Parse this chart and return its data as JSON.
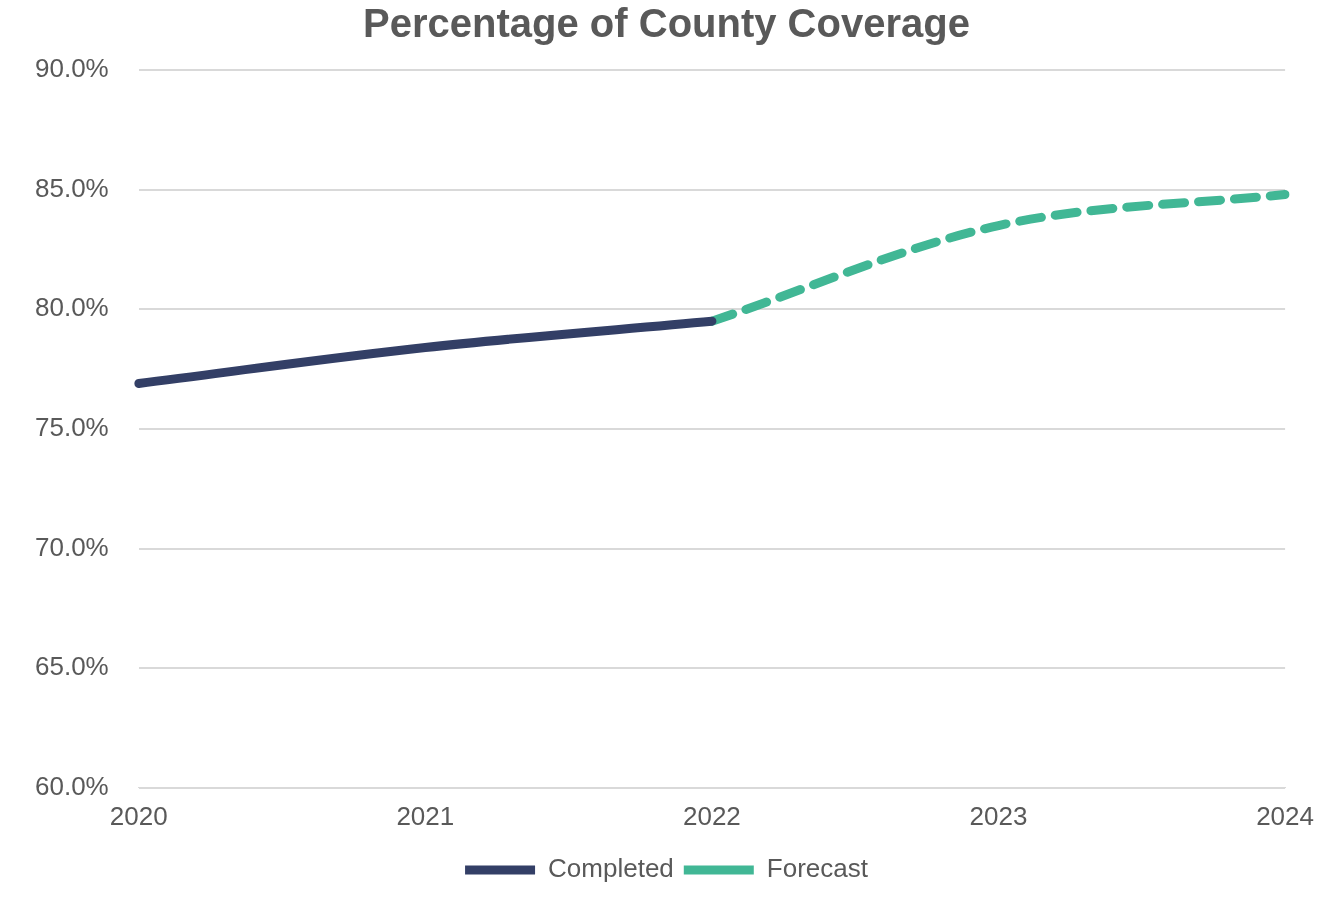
{
  "chart_data": {
    "type": "line",
    "title": "Percentage of County Coverage",
    "categories": [
      "2020",
      "2021",
      "2022",
      "2023",
      "2024"
    ],
    "series": [
      {
        "name": "Completed",
        "color": "#333f66",
        "values": [
          76.9,
          78.4,
          79.5,
          null,
          null
        ],
        "line_style": "solid"
      },
      {
        "name": "Forecast",
        "color": "#41b795",
        "values": [
          null,
          null,
          79.5,
          83.5,
          84.8
        ],
        "line_style": "dashed"
      }
    ],
    "ylim": [
      60,
      90
    ],
    "yticks": [
      {
        "value": 60,
        "label": "60.0%"
      },
      {
        "value": 65,
        "label": "65.0%"
      },
      {
        "value": 70,
        "label": "70.0%"
      },
      {
        "value": 75,
        "label": "75.0%"
      },
      {
        "value": 80,
        "label": "80.0%"
      },
      {
        "value": 85,
        "label": "85.0%"
      },
      {
        "value": 90,
        "label": "90.0%"
      }
    ],
    "grid": "y",
    "legend": "bottom",
    "marker": "none"
  }
}
